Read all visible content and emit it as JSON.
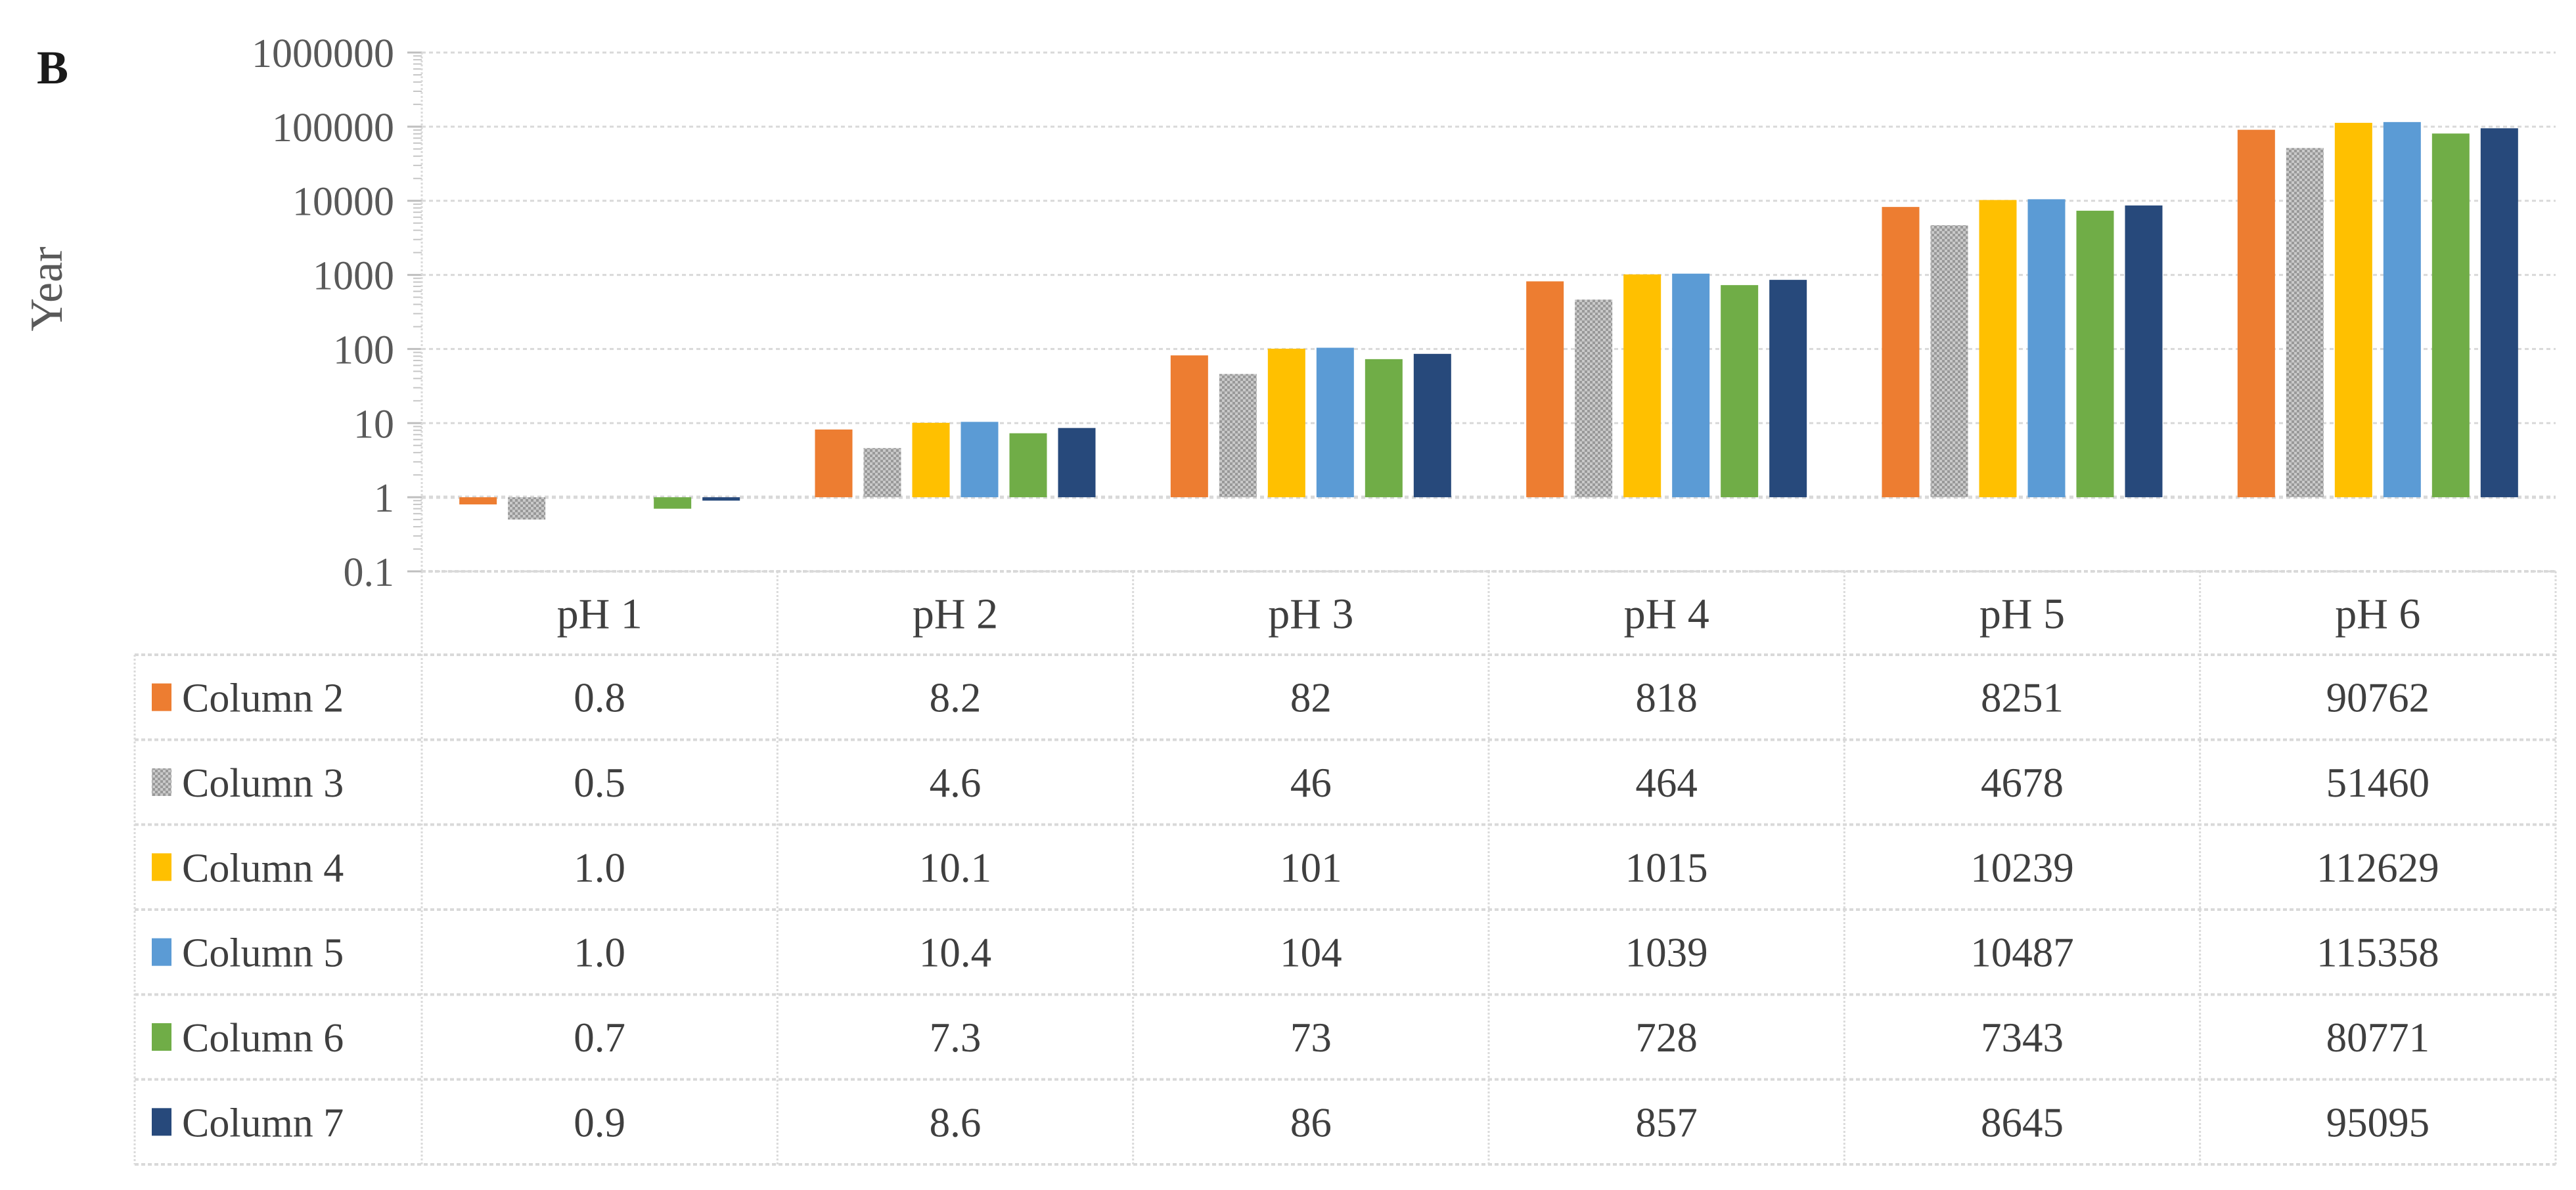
{
  "panel_label": "B",
  "chart_data": {
    "type": "bar",
    "title": "",
    "xlabel": "",
    "ylabel": "Year",
    "y_axis": {
      "scale": "log",
      "min": 0.1,
      "max": 1000000,
      "baseline": 1
    },
    "y_ticks": [
      "1000000",
      "100000",
      "10000",
      "1000",
      "100",
      "10",
      "1",
      "0.1"
    ],
    "grid": true,
    "legend_position": "data-table-left-column",
    "categories": [
      "pH 1",
      "pH 2",
      "pH 3",
      "pH 4",
      "pH 5",
      "pH 6"
    ],
    "series": [
      {
        "name": "Column 2",
        "color": "#ED7D31",
        "pattern": "solid",
        "values": [
          0.8,
          8.2,
          82,
          818,
          8251,
          90762
        ],
        "display": [
          "0.8",
          "8.2",
          "82",
          "818",
          "8251",
          "90762"
        ]
      },
      {
        "name": "Column 3",
        "color": "#A9A9A9",
        "pattern": "checker",
        "pattern_colors": [
          "#c9c9c9",
          "#999999"
        ],
        "values": [
          0.5,
          4.6,
          46,
          464,
          4678,
          51460
        ],
        "display": [
          "0.5",
          "4.6",
          "46",
          "464",
          "4678",
          "51460"
        ]
      },
      {
        "name": "Column 4",
        "color": "#FFC000",
        "pattern": "solid",
        "values": [
          1.0,
          10.1,
          101,
          1015,
          10239,
          112629
        ],
        "display": [
          "1.0",
          "10.1",
          "101",
          "1015",
          "10239",
          "112629"
        ]
      },
      {
        "name": "Column 5",
        "color": "#5B9BD5",
        "pattern": "solid",
        "values": [
          1.0,
          10.4,
          104,
          1039,
          10487,
          115358
        ],
        "display": [
          "1.0",
          "10.4",
          "104",
          "1039",
          "10487",
          "115358"
        ]
      },
      {
        "name": "Column 6",
        "color": "#70AD47",
        "pattern": "solid",
        "values": [
          0.7,
          7.3,
          73,
          728,
          7343,
          80771
        ],
        "display": [
          "0.7",
          "7.3",
          "73",
          "728",
          "7343",
          "80771"
        ]
      },
      {
        "name": "Column 7",
        "color": "#27497B",
        "pattern": "solid",
        "values": [
          0.9,
          8.6,
          86,
          857,
          8645,
          95095
        ],
        "display": [
          "0.9",
          "8.6",
          "86",
          "857",
          "8645",
          "95095"
        ]
      }
    ]
  }
}
